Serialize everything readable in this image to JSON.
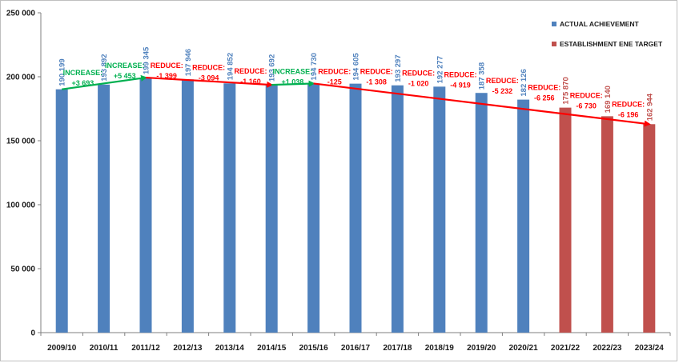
{
  "chart_data": {
    "type": "bar",
    "title": "",
    "xlabel": "",
    "ylabel": "",
    "ylim": [
      0,
      250000
    ],
    "yticks": [
      0,
      50000,
      100000,
      150000,
      200000,
      250000
    ],
    "ytick_labels": [
      "0",
      "50 000",
      "100 000",
      "150 000",
      "200 000",
      "250 000"
    ],
    "grid": false,
    "legend_position": "top-right",
    "categories": [
      "2009/10",
      "2010/11",
      "2011/12",
      "2012/13",
      "2013/14",
      "2014/15",
      "2015/16",
      "2016/17",
      "2017/18",
      "2018/19",
      "2019/20",
      "2020/21",
      "2021/22",
      "2022/23",
      "2023/24"
    ],
    "series": [
      {
        "name": "ACTUAL ACHIEVEMENT",
        "color": "#4f81bd",
        "values": [
          190199,
          193892,
          199345,
          197946,
          194852,
          193692,
          194730,
          194605,
          193297,
          192277,
          187358,
          182126,
          null,
          null,
          null
        ],
        "labels": [
          "190 199",
          "193 892",
          "199 345",
          "197 946",
          "194 852",
          "193 692",
          "194 730",
          "194 605",
          "193 297",
          "192 277",
          "187 358",
          "182 126",
          null,
          null,
          null
        ]
      },
      {
        "name": "ESTABLISHMENT  ENE TARGET",
        "color": "#c0504d",
        "values": [
          null,
          null,
          null,
          null,
          null,
          null,
          null,
          null,
          null,
          null,
          null,
          null,
          175870,
          169140,
          162944
        ],
        "labels": [
          null,
          null,
          null,
          null,
          null,
          null,
          null,
          null,
          null,
          null,
          null,
          null,
          "175 870",
          "169 140",
          "162 944"
        ]
      }
    ],
    "value_label_colors": {
      "actual": "#4f81bd",
      "target": "#c0504d"
    },
    "annotations": [
      {
        "between": [
          0,
          1
        ],
        "line1": "INCREASE:",
        "line2": "+3 693",
        "color": "#00b050"
      },
      {
        "between": [
          1,
          2
        ],
        "line1": "INCREASE:",
        "line2": "+5 453",
        "color": "#00b050"
      },
      {
        "between": [
          2,
          3
        ],
        "line1": "REDUCE:",
        "line2": "-1 399",
        "color": "#ff0000"
      },
      {
        "between": [
          3,
          4
        ],
        "line1": "REDUCE:",
        "line2": "-3 094",
        "color": "#ff0000"
      },
      {
        "between": [
          4,
          5
        ],
        "line1": "REDUCE:",
        "line2": "-1 160",
        "color": "#ff0000"
      },
      {
        "between": [
          5,
          6
        ],
        "line1": "INCREASE:",
        "line2": "+1 038",
        "color": "#00b050"
      },
      {
        "between": [
          6,
          7
        ],
        "line1": "REDUCE:",
        "line2": "-125",
        "color": "#ff0000"
      },
      {
        "between": [
          7,
          8
        ],
        "line1": "REDUCE:",
        "line2": "-1 308",
        "color": "#ff0000"
      },
      {
        "between": [
          8,
          9
        ],
        "line1": "REDUCE:",
        "line2": "-1 020",
        "color": "#ff0000"
      },
      {
        "between": [
          9,
          10
        ],
        "line1": "REDUCE:",
        "line2": "-4 919",
        "color": "#ff0000"
      },
      {
        "between": [
          10,
          11
        ],
        "line1": "REDUCE:",
        "line2": "-5 232",
        "color": "#ff0000"
      },
      {
        "between": [
          11,
          12
        ],
        "line1": "REDUCE:",
        "line2": "-6 256",
        "color": "#ff0000"
      },
      {
        "between": [
          12,
          13
        ],
        "line1": "REDUCE:",
        "line2": "-6 730",
        "color": "#ff0000"
      },
      {
        "between": [
          13,
          14
        ],
        "line1": "REDUCE:",
        "line2": "-6 196",
        "color": "#ff0000"
      }
    ],
    "trend_lines": [
      {
        "from": 0,
        "to": 2,
        "from_value": 190199,
        "to_value": 199345,
        "color": "#00b050",
        "arrow": true
      },
      {
        "from": 2,
        "to": 5,
        "from_value": 199345,
        "to_value": 193692,
        "color": "#ff0000",
        "arrow": true
      },
      {
        "from": 5,
        "to": 6,
        "from_value": 193692,
        "to_value": 194730,
        "color": "#00b050",
        "arrow": true
      },
      {
        "from": 6,
        "to": 14,
        "from_value": 194730,
        "to_value": 162944,
        "color": "#ff0000",
        "arrow": true
      }
    ]
  }
}
